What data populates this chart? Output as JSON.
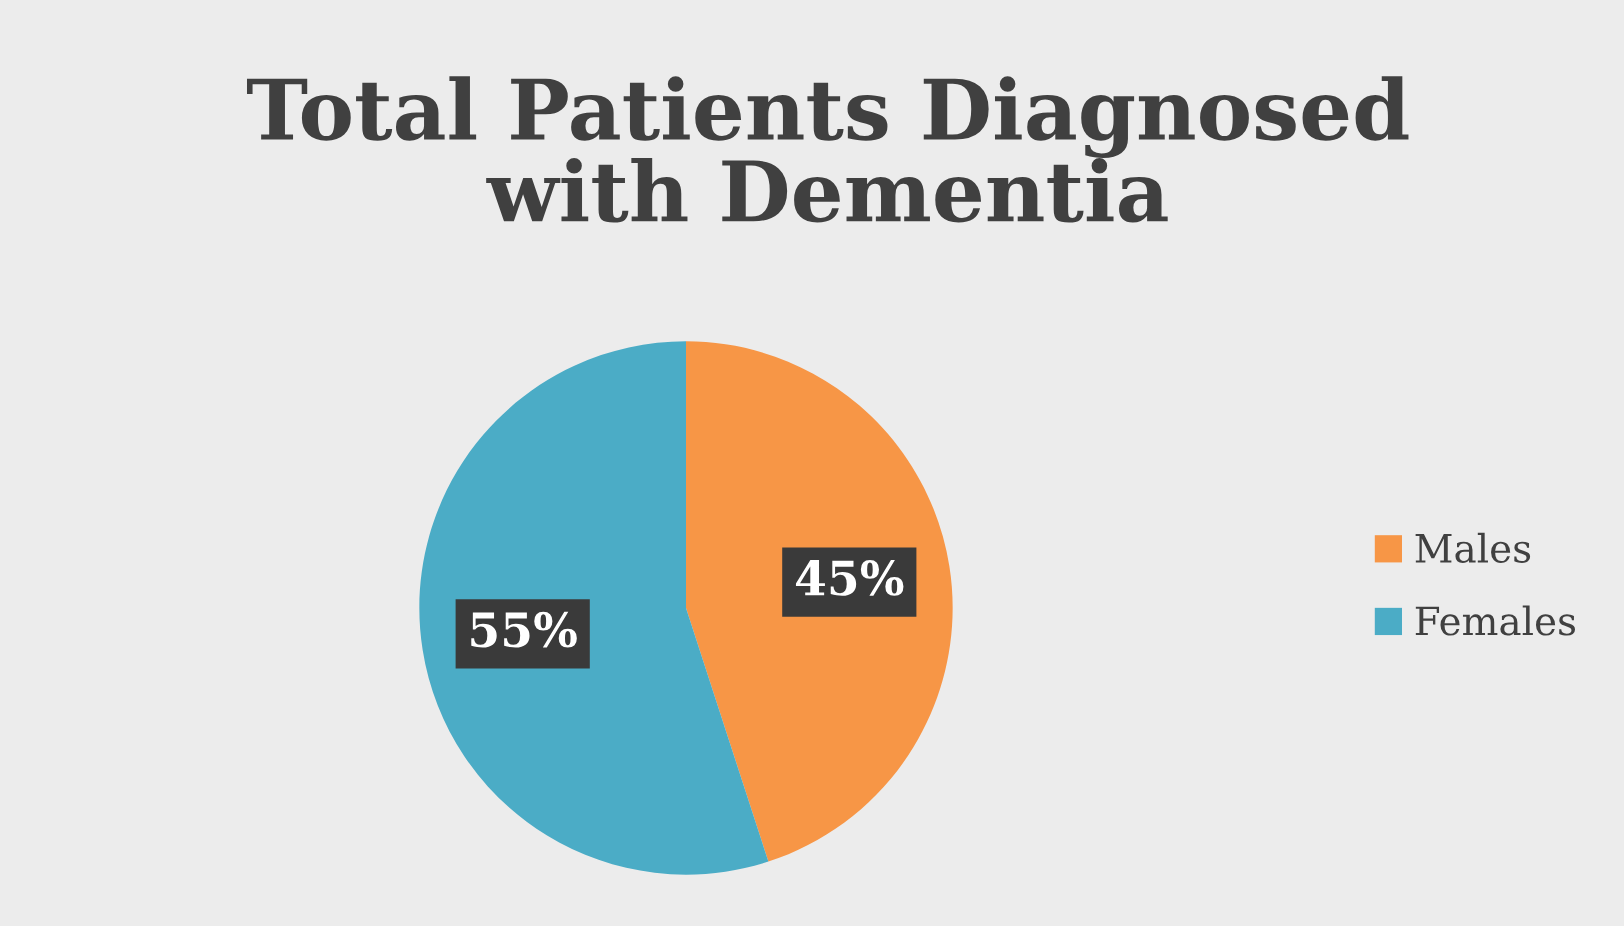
{
  "chart_data": {
    "type": "pie",
    "title": "Total Patients Diagnosed\nwith Dementia",
    "categories": [
      "Males",
      "Females"
    ],
    "values": [
      45,
      55
    ],
    "colors": [
      "#f79646",
      "#4bacc6"
    ],
    "value_labels": [
      "45%",
      "55%"
    ],
    "legend": "right"
  }
}
